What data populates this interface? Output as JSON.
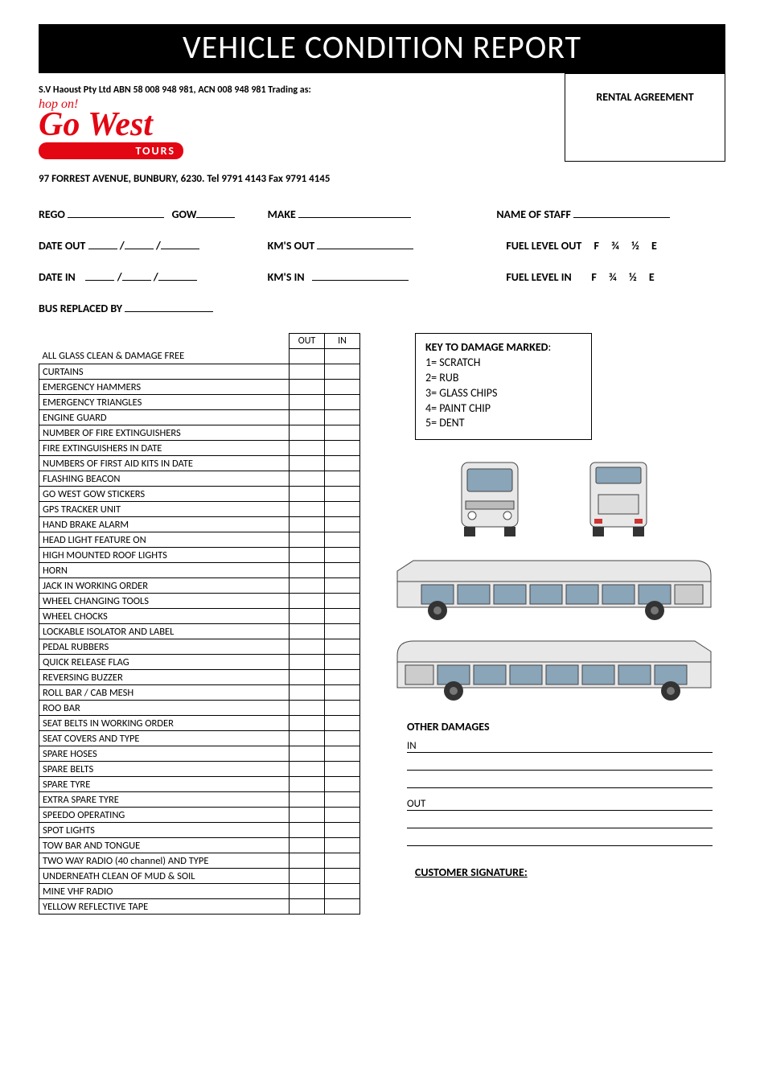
{
  "title": "VEHICLE CONDITION REPORT",
  "company_line": "S.V Haoust Pty Ltd ABN 58 008 948 981, ACN 008 948 981 Trading as:",
  "logo": {
    "hop": "hop on!",
    "name": "Go West",
    "tours": "TOURS",
    "brand_color": "#e30613"
  },
  "address": "97 FORREST AVENUE, BUNBURY, 6230. Tel 9791 4143 Fax 9791 4145",
  "rental_box_label": "RENTAL AGREEMENT",
  "form": {
    "rego": "REGO",
    "gow": "GOW",
    "make": "MAKE",
    "name_of_staff": "NAME OF STAFF",
    "date_out": "DATE OUT",
    "kms_out": "KM'S OUT",
    "fuel_out": "FUEL LEVEL OUT",
    "date_in": "DATE IN",
    "kms_in": "KM'S IN",
    "fuel_in": "FUEL LEVEL IN",
    "fuel_options": [
      "F",
      "¾",
      "½",
      "E"
    ]
  },
  "bus_replaced": "BUS REPLACED BY",
  "checklist": {
    "headers": [
      "",
      "OUT",
      "IN"
    ],
    "items": [
      "ALL GLASS CLEAN & DAMAGE FREE",
      "CURTAINS",
      "EMERGENCY HAMMERS",
      "EMERGENCY TRIANGLES",
      "ENGINE GUARD",
      "NUMBER OF FIRE EXTINGUISHERS",
      "FIRE EXTINGUISHERS IN DATE",
      "NUMBERS OF FIRST AID KITS IN DATE",
      "FLASHING BEACON",
      "GO WEST GOW STICKERS",
      "GPS TRACKER UNIT",
      "HAND BRAKE ALARM",
      "HEAD LIGHT FEATURE ON",
      "HIGH MOUNTED ROOF LIGHTS",
      "HORN",
      "JACK IN WORKING ORDER",
      "WHEEL CHANGING TOOLS",
      "WHEEL CHOCKS",
      "LOCKABLE ISOLATOR AND LABEL",
      "PEDAL RUBBERS",
      "QUICK RELEASE FLAG",
      "REVERSING BUZZER",
      "ROLL BAR / CAB MESH",
      "ROO BAR",
      "SEAT BELTS IN WORKING ORDER",
      "SEAT COVERS AND TYPE",
      "SPARE HOSES",
      "SPARE BELTS",
      "SPARE TYRE",
      "EXTRA SPARE TYRE",
      "SPEEDO OPERATING",
      "SPOT LIGHTS",
      "TOW BAR AND TONGUE",
      "TWO WAY RADIO (40 channel) AND TYPE",
      "UNDERNEATH CLEAN OF MUD & SOIL",
      "MINE VHF RADIO",
      "YELLOW REFLECTIVE TAPE"
    ]
  },
  "key_box": {
    "title": "KEY TO DAMAGE MARKED",
    "items": [
      "1= SCRATCH",
      "2= RUB",
      "3= GLASS CHIPS",
      "4= PAINT CHIP",
      "5= DENT"
    ]
  },
  "other_damages": {
    "title": "OTHER DAMAGES",
    "in_label": "IN",
    "out_label": "OUT"
  },
  "customer_signature": "CUSTOMER SIGNATURE:",
  "diagram_colors": {
    "stroke": "#444444",
    "body_fill": "#d9d9d9",
    "window_fill": "#8aa4b8",
    "tyre_fill": "#333333"
  }
}
